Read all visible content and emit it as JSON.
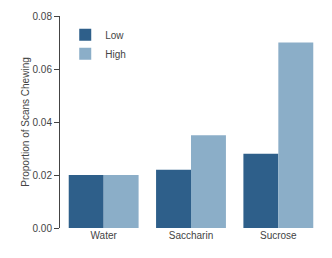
{
  "chart_data": {
    "type": "bar",
    "categories": [
      "Water",
      "Saccharin",
      "Sucrose"
    ],
    "series": [
      {
        "name": "Low",
        "color": "#2E5F8A",
        "values": [
          0.02,
          0.022,
          0.028
        ]
      },
      {
        "name": "High",
        "color": "#8BAEC8",
        "values": [
          0.02,
          0.035,
          0.07
        ]
      }
    ],
    "ylabel": "Proportion of Scans Chewing",
    "ylim": [
      0,
      0.08
    ],
    "yticks": [
      {
        "value": 0,
        "label": "0.00"
      },
      0.02,
      0.04,
      0.06,
      0.08
    ],
    "legend": "upper left",
    "grid": false
  }
}
